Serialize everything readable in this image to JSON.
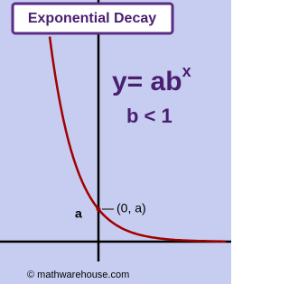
{
  "title": "Exponential Decay",
  "equation": {
    "base": "y= ab",
    "exponent": "x"
  },
  "condition": "b < 1",
  "intercept_label": "a",
  "point_label": "(0, a)",
  "footer": "© mathwarehouse.com"
}
